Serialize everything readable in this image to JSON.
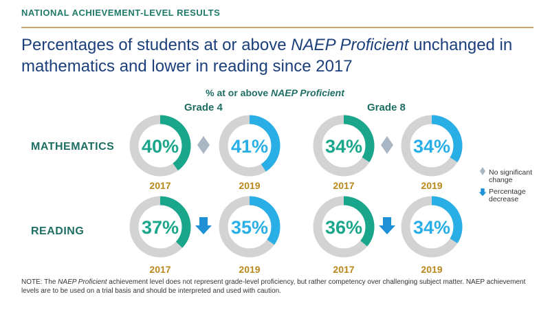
{
  "header": {
    "section_label": "NATIONAL ACHIEVEMENT-LEVEL RESULTS",
    "headline_part1": "Percentages of students at or above ",
    "headline_emph": "NAEP Proficient",
    "headline_part2": " unchanged in mathematics and lower in reading since 2017"
  },
  "chart_data": {
    "type": "donut",
    "title_prefix": "% at or above ",
    "title_emph": "NAEP Proficient",
    "grades": [
      "Grade 4",
      "Grade  8"
    ],
    "subjects": [
      "MATHEMATICS",
      "READING"
    ],
    "years": [
      "2017",
      "2019"
    ],
    "values": [
      {
        "subject": "MATHEMATICS",
        "grade": "Grade 4",
        "year": "2017",
        "value": 40,
        "label": "40%",
        "change": "no-significant-change"
      },
      {
        "subject": "MATHEMATICS",
        "grade": "Grade 4",
        "year": "2019",
        "value": 41,
        "label": "41%"
      },
      {
        "subject": "MATHEMATICS",
        "grade": "Grade 8",
        "year": "2017",
        "value": 34,
        "label": "34%",
        "change": "no-significant-change"
      },
      {
        "subject": "MATHEMATICS",
        "grade": "Grade 8",
        "year": "2019",
        "value": 34,
        "label": "34%"
      },
      {
        "subject": "READING",
        "grade": "Grade 4",
        "year": "2017",
        "value": 37,
        "label": "37%",
        "change": "percentage-decrease"
      },
      {
        "subject": "READING",
        "grade": "Grade 4",
        "year": "2019",
        "value": 35,
        "label": "35%"
      },
      {
        "subject": "READING",
        "grade": "Grade 8",
        "year": "2017",
        "value": 36,
        "label": "36%",
        "change": "percentage-decrease"
      },
      {
        "subject": "READING",
        "grade": "Grade 8",
        "year": "2019",
        "value": 34,
        "label": "34%"
      }
    ],
    "legend": [
      {
        "icon": "diamond-icon",
        "label_line1": "No significant",
        "label_line2": "change"
      },
      {
        "icon": "down-arrow-icon",
        "label_line1": "Percentage",
        "label_line2": "decrease"
      }
    ],
    "colors": {
      "fill_2017": "#1aa68a",
      "fill_2019": "#29aee6",
      "track": "#d3d3d3",
      "diamond": "#a9b6c3",
      "arrow": "#1f8fd6",
      "year_text": "#b8881a",
      "label_text": "#1f6e63"
    }
  },
  "note": {
    "prefix": "NOTE: The ",
    "emph": "NAEP Proficient",
    "rest": " achievement level does not represent grade-level proficiency, but rather competency over challenging subject matter. NAEP achievement levels are to be used on a trial basis and should be interpreted and used with caution."
  }
}
